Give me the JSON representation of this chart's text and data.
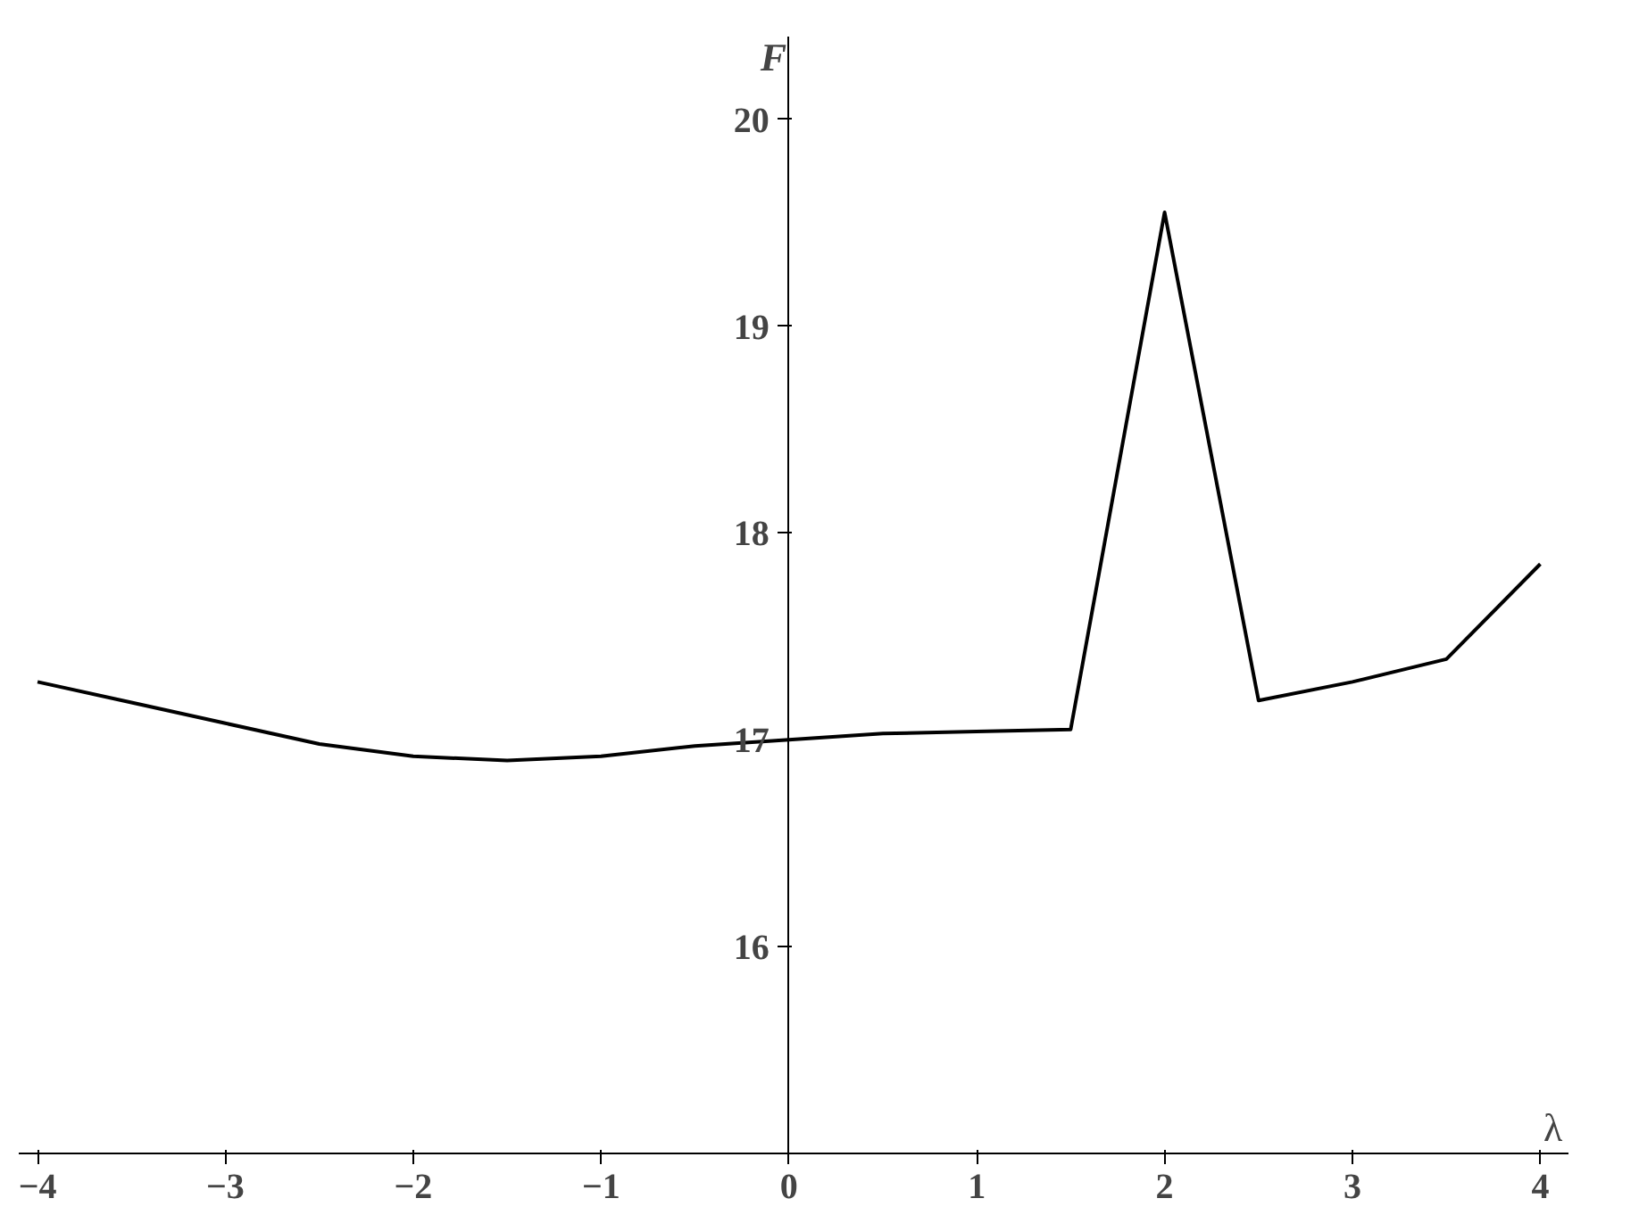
{
  "chart_data": {
    "type": "line",
    "xlabel": "λ",
    "ylabel": "F",
    "x": [
      -4,
      -3.5,
      -3,
      -2.5,
      -2,
      -1.5,
      -1,
      -0.5,
      0,
      0.5,
      1,
      1.5,
      2,
      2.5,
      3,
      3.5,
      4
    ],
    "series": [
      {
        "color": "#000000",
        "values": [
          17.28,
          17.18,
          17.08,
          16.98,
          16.92,
          16.9,
          16.92,
          16.97,
          17.0,
          17.03,
          17.04,
          17.05,
          19.55,
          17.19,
          17.28,
          17.39,
          17.85
        ]
      }
    ],
    "xlim": [
      -4.1,
      4.15
    ],
    "ylim": [
      15.0,
      20.4
    ],
    "xticks": [
      -4,
      -3,
      -2,
      -1,
      0,
      1,
      2,
      3,
      4
    ],
    "yticks": [
      16,
      17,
      18,
      19,
      20
    ],
    "grid": false
  }
}
